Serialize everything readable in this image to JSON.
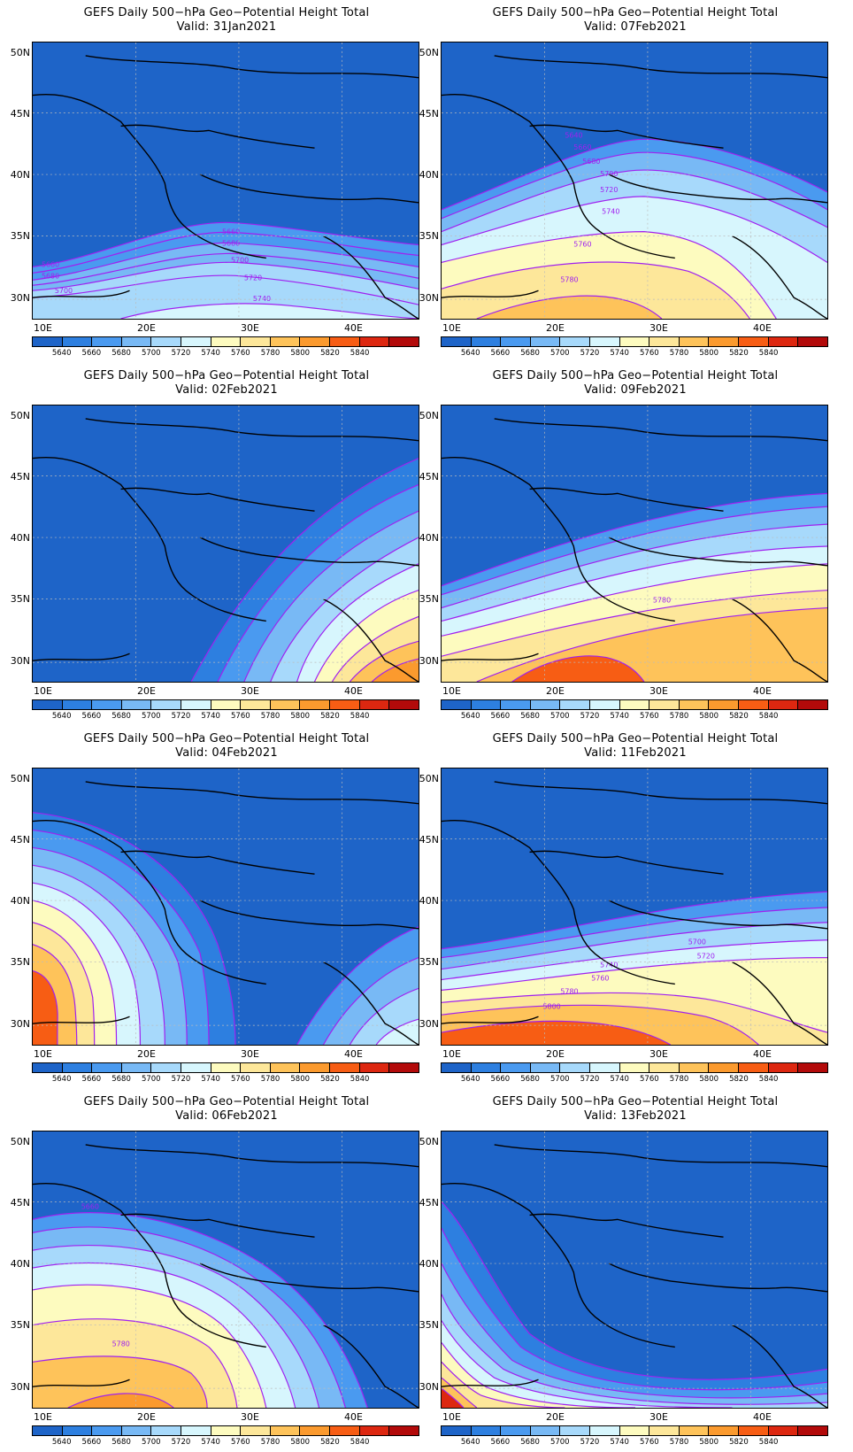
{
  "panels": [
    {
      "title": "GEFS Daily 500−hPa Geo−Potential Height Total",
      "valid": "Valid: 31Jan2021"
    },
    {
      "title": "GEFS Daily 500−hPa Geo−Potential Height Total",
      "valid": "Valid: 07Feb2021"
    },
    {
      "title": "GEFS Daily 500−hPa Geo−Potential Height Total",
      "valid": "Valid: 02Feb2021"
    },
    {
      "title": "GEFS Daily 500−hPa Geo−Potential Height Total",
      "valid": "Valid: 09Feb2021"
    },
    {
      "title": "GEFS Daily 500−hPa Geo−Potential Height Total",
      "valid": "Valid: 04Feb2021"
    },
    {
      "title": "GEFS Daily 500−hPa Geo−Potential Height Total",
      "valid": "Valid: 11Feb2021"
    },
    {
      "title": "GEFS Daily 500−hPa Geo−Potential Height Total",
      "valid": "Valid: 06Feb2021"
    },
    {
      "title": "GEFS Daily 500−hPa Geo−Potential Height Total",
      "valid": "Valid: 13Feb2021"
    }
  ],
  "axes": {
    "lat_labels": [
      "50N",
      "45N",
      "40N",
      "35N",
      "30N"
    ],
    "lon_labels": [
      "10E",
      "20E",
      "30E",
      "40E"
    ]
  },
  "colorbar": {
    "labels": [
      "5640",
      "5660",
      "5680",
      "5700",
      "5720",
      "5740",
      "5760",
      "5780",
      "5800",
      "5820",
      "5840"
    ],
    "colors": [
      "#1e64c8",
      "#2d7fe0",
      "#4a9af0",
      "#78b9f5",
      "#a7d9fb",
      "#d7f6fd",
      "#fdfbbf",
      "#fde79a",
      "#fec35a",
      "#fb9a2e",
      "#f75d14",
      "#dd2710",
      "#b30a0a"
    ]
  },
  "contour_color": "#a020f0",
  "contour_labels": {
    "p0": [
      "5660",
      "5660",
      "5680",
      "5680",
      "5700",
      "5700",
      "5720",
      "5740"
    ],
    "p1": [
      "5640",
      "5660",
      "5680",
      "5700",
      "5720",
      "5740",
      "5760",
      "5780"
    ],
    "p3": [
      "5780"
    ],
    "p5": [
      "5700",
      "5720",
      "5740",
      "5760",
      "5780",
      "5800"
    ],
    "p6": [
      "5660",
      "5780"
    ]
  }
}
